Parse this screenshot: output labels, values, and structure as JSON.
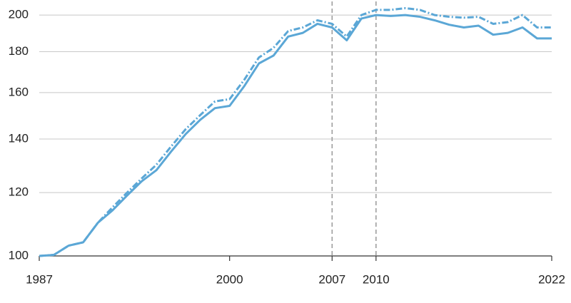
{
  "chart_data": {
    "type": "line",
    "x": [
      1987,
      1988,
      1989,
      1990,
      1991,
      1992,
      1993,
      1994,
      1995,
      1996,
      1997,
      1998,
      1999,
      2000,
      2001,
      2002,
      2003,
      2004,
      2005,
      2006,
      2007,
      2008,
      2009,
      2010,
      2011,
      2012,
      2013,
      2014,
      2015,
      2016,
      2017,
      2018,
      2019,
      2020,
      2021,
      2022
    ],
    "series": [
      {
        "color": "#5ba7d6",
        "linestyle": "solid",
        "values": [
          100,
          100.3,
          103,
          104,
          110,
          114,
          119,
          124,
          128,
          135,
          142,
          148,
          153,
          154,
          163,
          174,
          178,
          188,
          190,
          195,
          193,
          186,
          198,
          200,
          199.5,
          200,
          199,
          197,
          194.5,
          193,
          194,
          189,
          190,
          193,
          187,
          187
        ]
      },
      {
        "color": "#5ba7d6",
        "linestyle": "dashdot",
        "values": [
          100,
          100.3,
          103,
          104,
          110,
          115,
          120,
          125,
          130,
          137,
          144,
          150,
          156,
          157,
          166,
          177,
          182,
          191,
          193,
          197,
          195,
          188,
          200,
          203,
          203,
          204,
          203,
          200,
          199,
          198.5,
          199,
          195,
          196,
          200,
          193,
          193
        ]
      }
    ],
    "log_scale": true,
    "ylim": [
      100,
      208
    ],
    "yticks": [
      100,
      120,
      140,
      160,
      180,
      200
    ],
    "xlim": [
      1987,
      2022
    ],
    "xticks": [
      1987,
      2000,
      2007,
      2010,
      2022
    ],
    "vlines": [
      2007,
      2010
    ],
    "grid": true
  }
}
